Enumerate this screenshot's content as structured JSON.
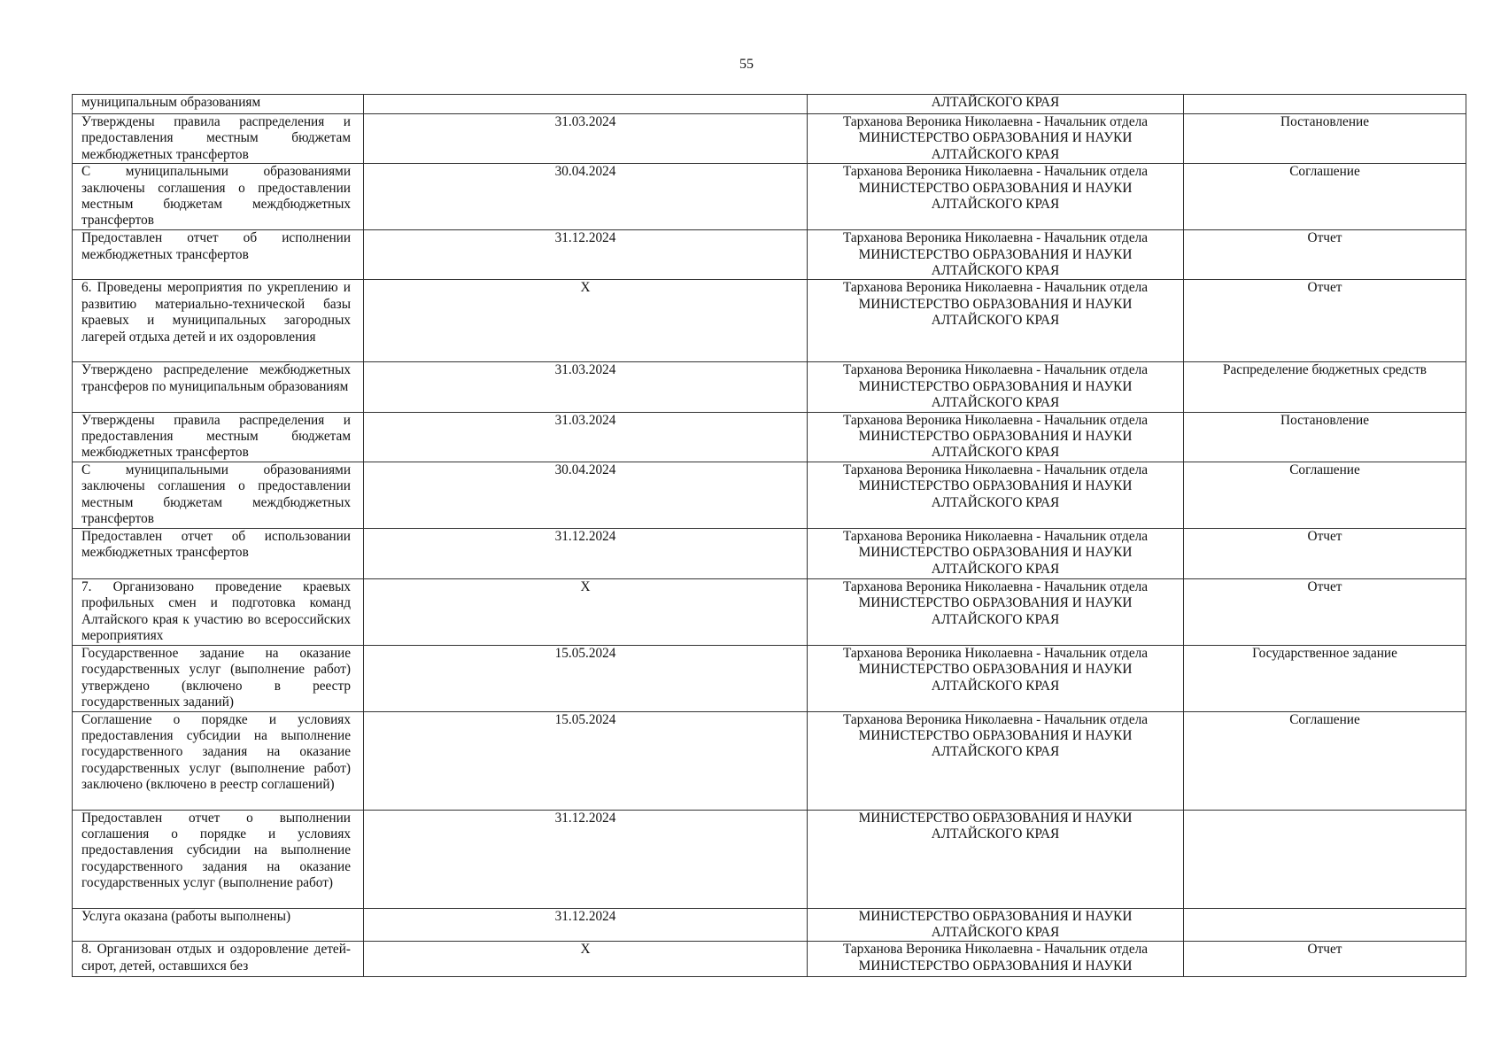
{
  "page_number": "55",
  "rows": [
    {
      "description": "муниципальным образованиям",
      "date": "",
      "responsible": "АЛТАЙСКОГО КРАЯ",
      "document": ""
    },
    {
      "description": "Утверждены правила распределения и предоставления местным бюджетам межбюджетных трансфертов",
      "date": "31.03.2024",
      "responsible": "Тарханова Вероника Николаевна - Начальник отдела\nМИНИСТЕРСТВО ОБРАЗОВАНИЯ И НАУКИ\nАЛТАЙСКОГО КРАЯ",
      "document": "Постановление"
    },
    {
      "description": "С муниципальными образованиями заключены соглашения о предоставлении местным бюджетам междбюджетных трансфертов",
      "date": "30.04.2024",
      "responsible": "Тарханова Вероника Николаевна - Начальник отдела\nМИНИСТЕРСТВО ОБРАЗОВАНИЯ И НАУКИ\nАЛТАЙСКОГО КРАЯ",
      "document": "Соглашение"
    },
    {
      "description": "Предоставлен отчет об исполнении межбюджетных трансфертов",
      "date": "31.12.2024",
      "responsible": "Тарханова Вероника Николаевна - Начальник отдела\nМИНИСТЕРСТВО ОБРАЗОВАНИЯ И НАУКИ\nАЛТАЙСКОГО КРАЯ",
      "document": "Отчет"
    },
    {
      "description": "6. Проведены мероприятия по укреплению и развитию материально-технической базы краевых и муниципальных загородных лагерей отдыха детей и их оздоровления",
      "date": "X",
      "responsible": "Тарханова Вероника Николаевна - Начальник отдела\nМИНИСТЕРСТВО ОБРАЗОВАНИЯ И НАУКИ\nАЛТАЙСКОГО КРАЯ",
      "document": "Отчет"
    },
    {
      "description": "Утверждено распределение межбюджетных трансферов по муниципальным образованиям",
      "date": "31.03.2024",
      "responsible": "Тарханова Вероника Николаевна - Начальник отдела\nМИНИСТЕРСТВО ОБРАЗОВАНИЯ И НАУКИ\nАЛТАЙСКОГО КРАЯ",
      "document": "Распределение бюджетных средств"
    },
    {
      "description": "Утверждены правила распределения и предоставления местным бюджетам межбюджетных трансфертов",
      "date": "31.03.2024",
      "responsible": "Тарханова Вероника Николаевна - Начальник отдела\nМИНИСТЕРСТВО ОБРАЗОВАНИЯ И НАУКИ\nАЛТАЙСКОГО КРАЯ",
      "document": "Постановление"
    },
    {
      "description": "С муниципальными образованиями заключены соглашения о предоставлении местным бюджетам междбюджетных трансфертов",
      "date": "30.04.2024",
      "responsible": "Тарханова Вероника Николаевна - Начальник отдела\nМИНИСТЕРСТВО ОБРАЗОВАНИЯ И НАУКИ\nАЛТАЙСКОГО КРАЯ",
      "document": "Соглашение"
    },
    {
      "description": "Предоставлен отчет об использовании межбюджетных трансфертов",
      "date": "31.12.2024",
      "responsible": "Тарханова Вероника Николаевна - Начальник отдела\nМИНИСТЕРСТВО ОБРАЗОВАНИЯ И НАУКИ\nАЛТАЙСКОГО КРАЯ",
      "document": "Отчет"
    },
    {
      "description": "7. Организовано проведение краевых профильных смен и подготовка команд Алтайского края к участию во всероссийских мероприятиях",
      "date": "X",
      "responsible": "Тарханова Вероника Николаевна - Начальник отдела\nМИНИСТЕРСТВО ОБРАЗОВАНИЯ И НАУКИ\nАЛТАЙСКОГО КРАЯ",
      "document": "Отчет"
    },
    {
      "description": "Государственное задание на оказание государственных услуг (выполнение работ) утверждено (включено в реестр государственных заданий)",
      "date": "15.05.2024",
      "responsible": "Тарханова Вероника Николаевна - Начальник отдела\nМИНИСТЕРСТВО ОБРАЗОВАНИЯ И НАУКИ\nАЛТАЙСКОГО КРАЯ",
      "document": "Государственное задание"
    },
    {
      "description": "Соглашение о порядке и условиях предоставления субсидии на выполнение государственного задания на оказание государственных услуг (выполнение работ) заключено (включено в реестр соглашений)",
      "date": "15.05.2024",
      "responsible": "Тарханова Вероника Николаевна - Начальник отдела\nМИНИСТЕРСТВО ОБРАЗОВАНИЯ И НАУКИ\nАЛТАЙСКОГО КРАЯ",
      "document": "Соглашение"
    },
    {
      "description": "Предоставлен отчет о выполнении соглашения о порядке и условиях предоставления субсидии на выполнение государственного задания на оказание государственных услуг (выполнение работ)",
      "date": "31.12.2024",
      "responsible": "МИНИСТЕРСТВО ОБРАЗОВАНИЯ И НАУКИ\nАЛТАЙСКОГО КРАЯ",
      "document": ""
    },
    {
      "description": "Услуга оказана (работы выполнены)",
      "date": "31.12.2024",
      "responsible": "МИНИСТЕРСТВО ОБРАЗОВАНИЯ И НАУКИ\nАЛТАЙСКОГО КРАЯ",
      "document": ""
    },
    {
      "description": "8. Организован отдых и оздоровление детей-сирот, детей, оставшихся без",
      "date": "X",
      "responsible": "Тарханова Вероника Николаевна - Начальник отдела\nМИНИСТЕРСТВО ОБРАЗОВАНИЯ И НАУКИ",
      "document": "Отчет"
    }
  ]
}
